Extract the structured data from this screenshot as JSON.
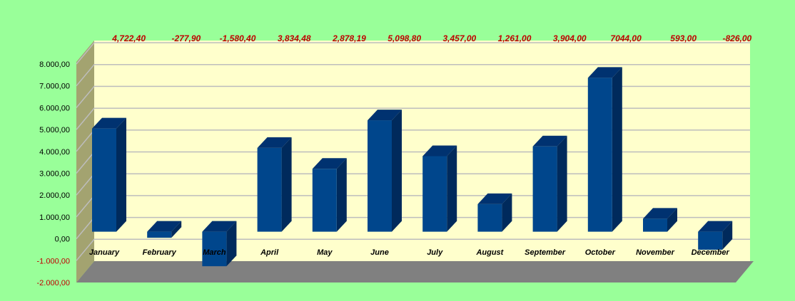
{
  "chart_data": {
    "type": "bar",
    "categories": [
      "January",
      "February",
      "March",
      "April",
      "May",
      "June",
      "July",
      "August",
      "September",
      "October",
      "November",
      "December"
    ],
    "values": [
      4722.4,
      -277.9,
      -1580.4,
      3834.48,
      2878.19,
      5098.8,
      3457.0,
      1261.0,
      3904.0,
      7044.0,
      593.0,
      -826.0
    ],
    "data_labels": [
      "4,722,40",
      "-277,90",
      "-1,580,40",
      "3,834,48",
      "2,878,19",
      "5,098,80",
      "3,457,00",
      "1,261,00",
      "3,904,00",
      "7044,00",
      "593,00",
      "-826,00"
    ],
    "y_ticks": [
      8000,
      7000,
      6000,
      5000,
      4000,
      3000,
      2000,
      1000,
      0,
      -1000,
      -2000
    ],
    "y_tick_labels": [
      "8.000,00",
      "7.000,00",
      "6.000,00",
      "5.000,00",
      "4.000,00",
      "3.000,00",
      "2.000,00",
      "1.000,00",
      "0,00",
      "-1.000,00",
      "-2.000,00"
    ],
    "ylim": [
      -2000,
      8000
    ],
    "grid": true,
    "style": "3d-column",
    "colors": {
      "background": "#99FF99",
      "plot_area": "#FFFFCC",
      "side_wall": "#A3A370",
      "floor": "#808080",
      "bar_front": "#00468C",
      "bar_side": "#002A5C",
      "bar_top": "#003270",
      "gridline": "#BDBDBD",
      "data_label": "#C00000",
      "negative_tick": "#C00000",
      "positive_tick": "#000000"
    }
  }
}
